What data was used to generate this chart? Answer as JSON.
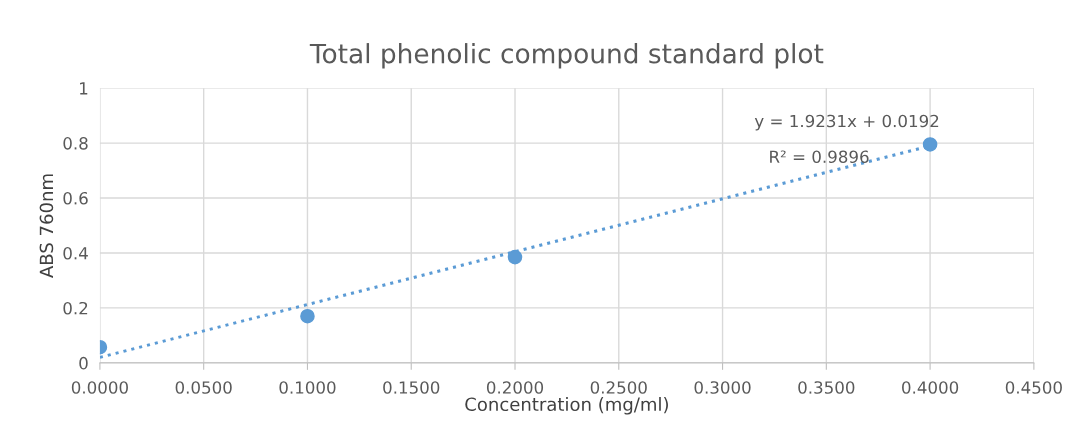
{
  "chart_data": {
    "type": "scatter",
    "title": "Total phenolic compound standard plot",
    "xlabel": "Concentration (mg/ml)",
    "ylabel": "ABS 760nm",
    "series": [
      {
        "color": "#5b9bd5",
        "x": [
          0.0,
          0.1,
          0.2,
          0.4
        ],
        "values": [
          0.057,
          0.17,
          0.385,
          0.795
        ],
        "marker": "circle"
      },
      {
        "type": "line",
        "color": "#5b9bd5",
        "x": [
          0.0,
          0.4
        ],
        "values": [
          0.02,
          0.79
        ],
        "line_style": "dotted"
      }
    ],
    "annotations": [
      "y = 1.9231x + 0.0192",
      "R² = 0.9896"
    ],
    "xlim": [
      0,
      0.45
    ],
    "ylim": [
      0,
      1
    ],
    "xticks": [
      {
        "value": 0,
        "label": "0.0000"
      },
      {
        "value": 0.05,
        "label": "0.0500"
      },
      {
        "value": 0.1,
        "label": "0.1000"
      },
      {
        "value": 0.15,
        "label": "0.1500"
      },
      {
        "value": 0.2,
        "label": "0.2000"
      },
      {
        "value": 0.25,
        "label": "0.2500"
      },
      {
        "value": 0.3,
        "label": "0.3000"
      },
      {
        "value": 0.35,
        "label": "0.3500"
      },
      {
        "value": 0.4,
        "label": "0.4000"
      },
      {
        "value": 0.45,
        "label": "0.4500"
      }
    ],
    "yticks": [
      0,
      0.2,
      0.4,
      0.6,
      0.8,
      1
    ],
    "grid": true
  }
}
